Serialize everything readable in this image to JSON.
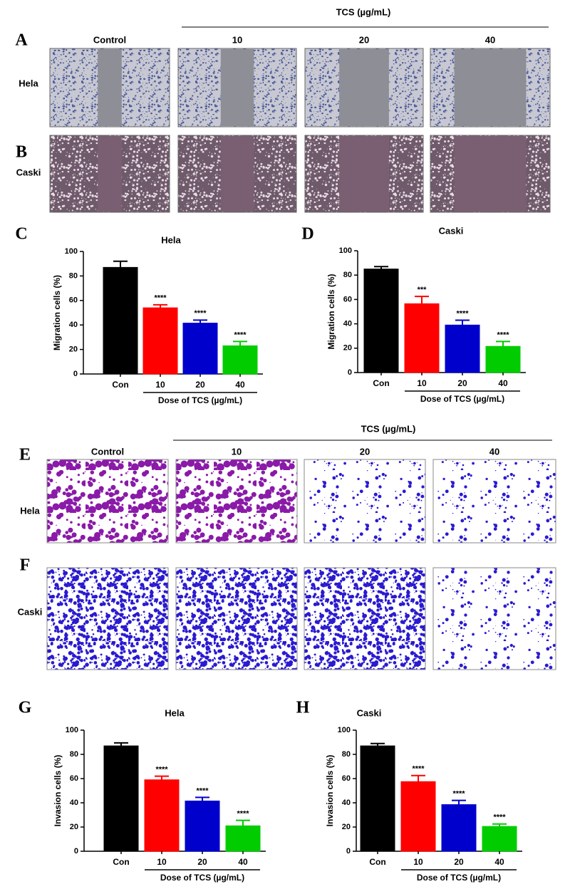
{
  "figure": {
    "panels": [
      "A",
      "B",
      "C",
      "D",
      "E",
      "F",
      "G",
      "H"
    ],
    "migration": {
      "header": "TCS (µg/mL)",
      "columns": [
        "Control",
        "10",
        "20",
        "40"
      ],
      "rows": [
        "Hela",
        "Caski"
      ]
    },
    "invasion": {
      "header": "TCS (µg/mL)",
      "columns": [
        "Control",
        "10",
        "20",
        "40"
      ],
      "rows": [
        "Hela",
        "Caski"
      ]
    }
  },
  "chart_data": [
    {
      "type": "bar",
      "title": "Hela",
      "ylabel": "Migration cells (%)",
      "xlabel": "Dose of TCS (µg/mL)",
      "categories": [
        "Con",
        "10",
        "20",
        "40"
      ],
      "values": [
        87,
        54,
        41.5,
        23
      ],
      "errors": [
        5,
        2.5,
        2.5,
        3.5
      ],
      "annotations": [
        null,
        "****",
        "****",
        "****"
      ],
      "colors": [
        "#000000",
        "#ff0000",
        "#0000cc",
        "#00cc00"
      ],
      "ylim": [
        0,
        100
      ],
      "yticks": [
        0,
        20,
        40,
        60,
        80,
        100
      ]
    },
    {
      "type": "bar",
      "title": "Caski",
      "ylabel": "Migration cells (%)",
      "xlabel": "Dose of TCS (µg/mL)",
      "categories": [
        "Con",
        "10",
        "20",
        "40"
      ],
      "values": [
        85,
        56.5,
        39,
        21.5
      ],
      "errors": [
        2,
        6,
        4,
        4
      ],
      "annotations": [
        null,
        "***",
        "****",
        "****"
      ],
      "colors": [
        "#000000",
        "#ff0000",
        "#0000cc",
        "#00cc00"
      ],
      "ylim": [
        0,
        100
      ],
      "yticks": [
        0,
        20,
        40,
        60,
        80,
        100
      ]
    },
    {
      "type": "bar",
      "title": "Hela",
      "ylabel": "Invasion cells (%)",
      "xlabel": "Dose of TCS (µg/mL)",
      "categories": [
        "Con",
        "10",
        "20",
        "40"
      ],
      "values": [
        87,
        59,
        41.5,
        21
      ],
      "errors": [
        2.5,
        3,
        3,
        4.5
      ],
      "annotations": [
        null,
        "****",
        "****",
        "****"
      ],
      "colors": [
        "#000000",
        "#ff0000",
        "#0000cc",
        "#00cc00"
      ],
      "ylim": [
        0,
        100
      ],
      "yticks": [
        0,
        20,
        40,
        60,
        80,
        100
      ]
    },
    {
      "type": "bar",
      "title": "Caski",
      "ylabel": "Invasion cells (%)",
      "xlabel": "Dose of TCS (µg/mL)",
      "categories": [
        "Con",
        "10",
        "20",
        "40"
      ],
      "values": [
        87,
        57.5,
        38.5,
        20.5
      ],
      "errors": [
        2,
        5,
        3.5,
        2
      ],
      "annotations": [
        null,
        "****",
        "****",
        "****"
      ],
      "colors": [
        "#000000",
        "#ff0000",
        "#0000cc",
        "#00cc00"
      ],
      "ylim": [
        0,
        100
      ],
      "yticks": [
        0,
        20,
        40,
        60,
        80,
        100
      ]
    }
  ]
}
